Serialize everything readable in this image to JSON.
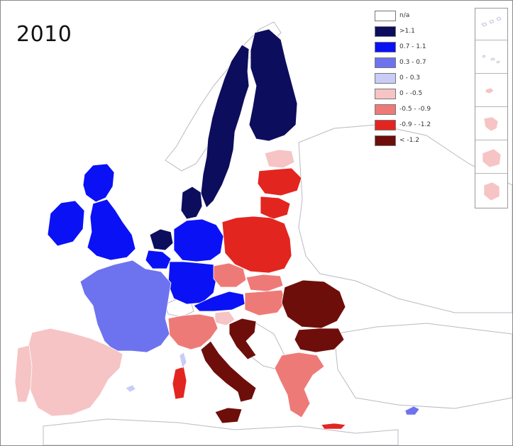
{
  "map": {
    "year_label": "2010",
    "legend": [
      {
        "label": "n/a",
        "color": "#ffffff"
      },
      {
        "label": ">1.1",
        "color": "#0d0d5e"
      },
      {
        "label": "0.7 - 1.1",
        "color": "#0a12f5"
      },
      {
        "label": "0.3 - 0.7",
        "color": "#6d73ee"
      },
      {
        "label": "0 - 0.3",
        "color": "#c9ccf7"
      },
      {
        "label": "0 - -0.5",
        "color": "#f6c4c4"
      },
      {
        "label": "-0.5 - -0.9",
        "color": "#ee7a78"
      },
      {
        "label": "-0.9 - -1.2",
        "color": "#e3251f"
      },
      {
        "label": "< -1.2",
        "color": "#6e0e0a"
      }
    ],
    "colors": {
      "background": "#ffffff",
      "non_eu_land": "#ffffff",
      "border_line": "#b9b9c4",
      "region_border": "#ffffff"
    },
    "regions": [
      {
        "name": "Finland",
        "class": ">1.1"
      },
      {
        "name": "Sweden",
        "class": ">1.1"
      },
      {
        "name": "Denmark",
        "class": ">1.1"
      },
      {
        "name": "Netherlands",
        "class": ">1.1"
      },
      {
        "name": "Estonia",
        "class": "0 - -0.5"
      },
      {
        "name": "Latvia",
        "class": "-0.9 - -1.2"
      },
      {
        "name": "Lithuania",
        "class": "-0.9 - -1.2"
      },
      {
        "name": "Scotland",
        "class": "0.7 - 1.1"
      },
      {
        "name": "England",
        "class": "0.7 - 1.1"
      },
      {
        "name": "Ireland",
        "class": "0.7 - 1.1"
      },
      {
        "name": "Northern Germany",
        "class": "0.7 - 1.1"
      },
      {
        "name": "Southern Germany",
        "class": "0.7 - 1.1"
      },
      {
        "name": "Austria",
        "class": "0.7 - 1.1"
      },
      {
        "name": "Belgium",
        "class": "0.7 - 1.1"
      },
      {
        "name": "France",
        "class": "0.3 - 0.7"
      },
      {
        "name": "Poland",
        "class": "-0.9 - -1.2"
      },
      {
        "name": "Czechia",
        "class": "-0.5 - -0.9"
      },
      {
        "name": "Slovakia",
        "class": "-0.5 - -0.9"
      },
      {
        "name": "Hungary",
        "class": "-0.5 - -0.9"
      },
      {
        "name": "Slovenia",
        "class": "0 - -0.5"
      },
      {
        "name": "Spain",
        "class": "0 - -0.5"
      },
      {
        "name": "Portugal",
        "class": "0 - -0.5"
      },
      {
        "name": "Northern Italy",
        "class": "-0.5 - -0.9"
      },
      {
        "name": "Southern Italy",
        "class": "< -1.2"
      },
      {
        "name": "Sicily",
        "class": "< -1.2"
      },
      {
        "name": "Sardinia",
        "class": "-0.9 - -1.2"
      },
      {
        "name": "Romania",
        "class": "< -1.2"
      },
      {
        "name": "Bulgaria",
        "class": "< -1.2"
      },
      {
        "name": "Greece",
        "class": "-0.5 - -0.9"
      },
      {
        "name": "Croatia",
        "class": "< -1.2"
      }
    ],
    "insets": [
      {
        "name": "Canary Islands",
        "class": "n/a"
      },
      {
        "name": "Azores",
        "class": "n/a"
      },
      {
        "name": "Madeira",
        "class": "0 - -0.5"
      },
      {
        "name": "Guadeloupe",
        "class": "0 - -0.5"
      },
      {
        "name": "Martinique",
        "class": "0 - -0.5"
      },
      {
        "name": "Reunion",
        "class": "0 - -0.5"
      }
    ]
  }
}
